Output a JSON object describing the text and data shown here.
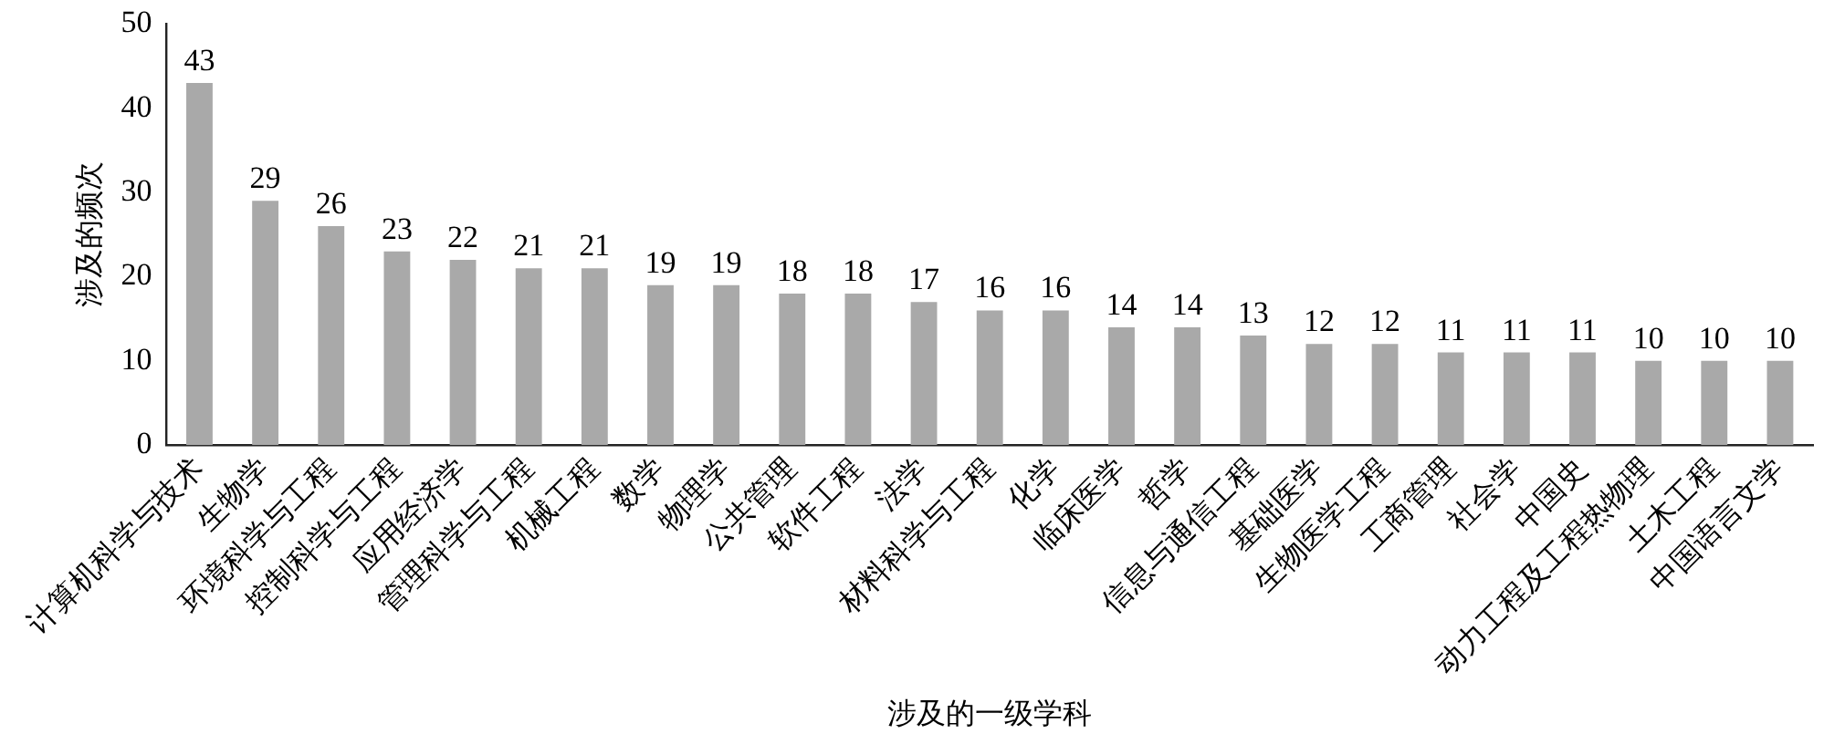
{
  "chart_data": {
    "type": "bar",
    "xlabel": "涉及的一级学科",
    "ylabel": "涉及的频次",
    "categories": [
      "计算机科学与技术",
      "生物学",
      "环境科学与工程",
      "控制科学与工程",
      "应用经济学",
      "管理科学与工程",
      "机械工程",
      "数学",
      "物理学",
      "公共管理",
      "软件工程",
      "法学",
      "材料科学与工程",
      "化学",
      "临床医学",
      "哲学",
      "信息与通信工程",
      "基础医学",
      "生物医学工程",
      "工商管理",
      "社会学",
      "中国史",
      "动力工程及工程热物理",
      "土木工程",
      "中国语言文学"
    ],
    "values": [
      43,
      29,
      26,
      23,
      22,
      21,
      21,
      19,
      19,
      18,
      18,
      17,
      16,
      16,
      14,
      14,
      13,
      12,
      12,
      11,
      11,
      11,
      10,
      10,
      10
    ],
    "color": "#a9a9a9",
    "ylim": [
      0,
      50
    ],
    "yticks": [
      0,
      10,
      20,
      30,
      40,
      50
    ],
    "grid": false,
    "legend": false,
    "data_labels": true
  }
}
